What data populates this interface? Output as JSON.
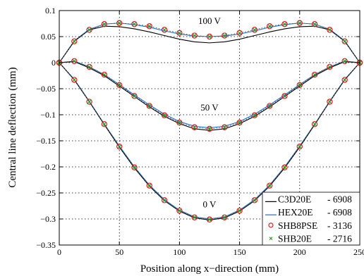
{
  "chart_data": {
    "type": "line",
    "title": "",
    "xlabel": "Position along x−direction (mm)",
    "ylabel": "Central line deflection (mm)",
    "xlim": [
      0,
      250
    ],
    "ylim": [
      -0.35,
      0.1
    ],
    "xticks": [
      0,
      50,
      100,
      150,
      200,
      250
    ],
    "yticks": [
      0.1,
      0.05,
      0,
      -0.05,
      -0.1,
      -0.15,
      -0.2,
      -0.25,
      -0.3,
      -0.35
    ],
    "xtick_labels": [
      "0",
      "50",
      "100",
      "150",
      "200",
      "250"
    ],
    "ytick_labels": [
      "0.1",
      "0.05",
      "0",
      "−0.05",
      "−0.1",
      "−0.15",
      "−0.2",
      "−0.25",
      "−0.3",
      "−0.35"
    ],
    "grid": true,
    "legend_position": "bottom-right",
    "legend": [
      {
        "label": "C3D20E",
        "count": "- 6908",
        "marker": "line",
        "color": "#000000"
      },
      {
        "label": "HEX20E",
        "count": "- 6908",
        "marker": "line",
        "color": "#1f6fd1"
      },
      {
        "label": "SHB8PSE",
        "count": "- 3136",
        "marker": "circle",
        "color": "#e01b1b"
      },
      {
        "label": "SHB20E",
        "count": "- 2716",
        "marker": "x",
        "color": "#2aa02a"
      }
    ],
    "annotations": [
      {
        "text": "100 V",
        "x": 125,
        "y": 0.074
      },
      {
        "text": "50 V",
        "x": 125,
        "y": -0.092
      },
      {
        "text": "0 V",
        "x": 125,
        "y": -0.278
      }
    ],
    "x": [
      0,
      12.5,
      25,
      37.5,
      50,
      62.5,
      75,
      87.5,
      100,
      112.5,
      125,
      137.5,
      150,
      162.5,
      175,
      187.5,
      200,
      212.5,
      225,
      237.5,
      250
    ],
    "groups": [
      {
        "voltage": "100 V",
        "C3D20E": [
          0,
          0.041,
          0.063,
          0.07,
          0.069,
          0.065,
          0.059,
          0.052,
          0.045,
          0.04,
          0.038,
          0.04,
          0.045,
          0.052,
          0.059,
          0.065,
          0.069,
          0.07,
          0.063,
          0.041,
          0
        ],
        "HEX20E": [
          0,
          0.042,
          0.064,
          0.074,
          0.076,
          0.073,
          0.068,
          0.061,
          0.055,
          0.051,
          0.05,
          0.051,
          0.055,
          0.061,
          0.068,
          0.073,
          0.076,
          0.074,
          0.064,
          0.042,
          0
        ],
        "SHB8PSE": [
          0,
          0.041,
          0.063,
          0.074,
          0.076,
          0.074,
          0.07,
          0.063,
          0.057,
          0.052,
          0.05,
          0.052,
          0.057,
          0.063,
          0.07,
          0.074,
          0.076,
          0.074,
          0.063,
          0.041,
          0
        ],
        "SHB20E": [
          0,
          0.041,
          0.063,
          0.074,
          0.076,
          0.074,
          0.07,
          0.063,
          0.057,
          0.052,
          0.05,
          0.052,
          0.057,
          0.063,
          0.07,
          0.074,
          0.076,
          0.074,
          0.063,
          0.041,
          0
        ]
      },
      {
        "voltage": "50 V",
        "C3D20E": [
          0,
          0.002,
          -0.01,
          -0.025,
          -0.045,
          -0.065,
          -0.085,
          -0.103,
          -0.117,
          -0.127,
          -0.13,
          -0.127,
          -0.117,
          -0.103,
          -0.085,
          -0.065,
          -0.045,
          -0.025,
          -0.01,
          0.002,
          0
        ],
        "HEX20E": [
          0,
          0.003,
          -0.008,
          -0.023,
          -0.042,
          -0.062,
          -0.081,
          -0.099,
          -0.113,
          -0.122,
          -0.125,
          -0.122,
          -0.113,
          -0.099,
          -0.081,
          -0.062,
          -0.042,
          -0.023,
          -0.008,
          0.003,
          0
        ],
        "SHB8PSE": [
          0,
          0.003,
          -0.008,
          -0.023,
          -0.043,
          -0.064,
          -0.083,
          -0.101,
          -0.115,
          -0.124,
          -0.127,
          -0.124,
          -0.115,
          -0.101,
          -0.083,
          -0.064,
          -0.043,
          -0.023,
          -0.008,
          0.003,
          0
        ],
        "SHB20E": [
          0,
          0.003,
          -0.008,
          -0.023,
          -0.043,
          -0.064,
          -0.083,
          -0.101,
          -0.115,
          -0.124,
          -0.127,
          -0.124,
          -0.115,
          -0.101,
          -0.083,
          -0.064,
          -0.043,
          -0.023,
          -0.008,
          0.003,
          0
        ]
      },
      {
        "voltage": "0 V",
        "C3D20E": [
          0,
          -0.033,
          -0.075,
          -0.119,
          -0.162,
          -0.202,
          -0.237,
          -0.265,
          -0.285,
          -0.298,
          -0.302,
          -0.298,
          -0.285,
          -0.265,
          -0.237,
          -0.202,
          -0.162,
          -0.119,
          -0.075,
          -0.033,
          0
        ],
        "HEX20E": [
          0,
          -0.032,
          -0.074,
          -0.118,
          -0.16,
          -0.2,
          -0.235,
          -0.263,
          -0.283,
          -0.296,
          -0.3,
          -0.296,
          -0.283,
          -0.263,
          -0.235,
          -0.2,
          -0.16,
          -0.118,
          -0.074,
          -0.032,
          0
        ],
        "SHB8PSE": [
          0,
          -0.033,
          -0.075,
          -0.118,
          -0.161,
          -0.201,
          -0.236,
          -0.264,
          -0.284,
          -0.297,
          -0.301,
          -0.297,
          -0.284,
          -0.264,
          -0.236,
          -0.201,
          -0.161,
          -0.118,
          -0.075,
          -0.033,
          0
        ],
        "SHB20E": [
          0,
          -0.033,
          -0.075,
          -0.118,
          -0.161,
          -0.201,
          -0.236,
          -0.264,
          -0.284,
          -0.297,
          -0.301,
          -0.297,
          -0.284,
          -0.264,
          -0.236,
          -0.201,
          -0.161,
          -0.118,
          -0.075,
          -0.033,
          0
        ]
      }
    ]
  }
}
